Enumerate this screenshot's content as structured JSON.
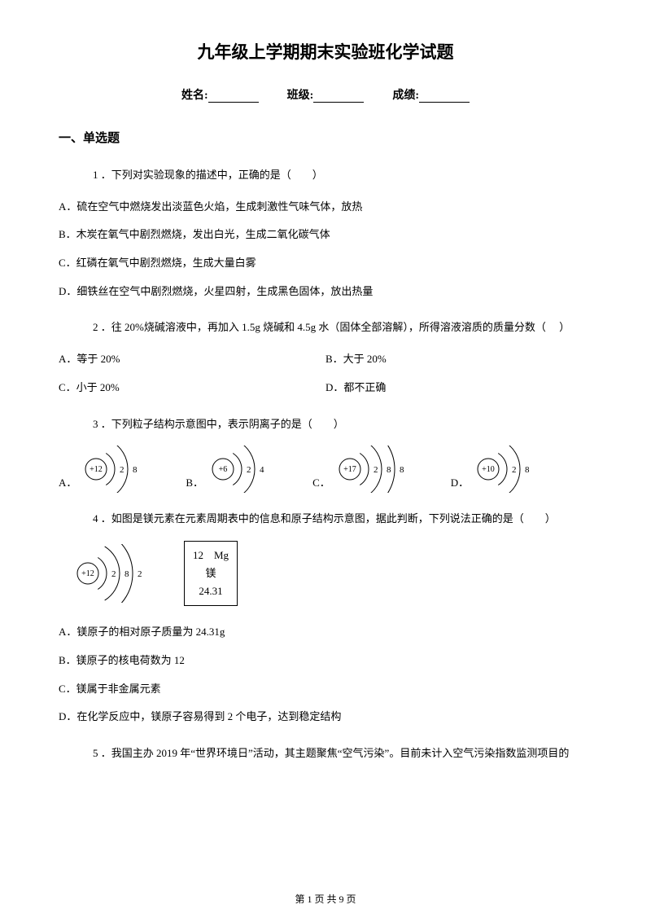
{
  "title": "九年级上学期期末实验班化学试题",
  "info": {
    "name_label": "姓名:",
    "class_label": "班级:",
    "score_label": "成绩:"
  },
  "section1_title": "一、单选题",
  "q1": {
    "stem": "1 ．下列对实验现象的描述中，正确的是（　　）",
    "a": "A．硫在空气中燃烧发出淡蓝色火焰，生成刺激性气味气体，放热",
    "b": "B．木炭在氧气中剧烈燃烧，发出白光，生成二氧化碳气体",
    "c": "C．红磷在氧气中剧烈燃烧，生成大量白雾",
    "d": "D．细铁丝在空气中剧烈燃烧，火星四射，生成黑色固体，放出热量"
  },
  "q2": {
    "stem": "2 ．往 20%烧碱溶液中，再加入 1.5g 烧碱和 4.5g 水（固体全部溶解），所得溶液溶质的质量分数（　  ）",
    "a": "A．等于 20%",
    "b": "B．大于 20%",
    "c": "C．小于 20%",
    "d": "D．都不正确"
  },
  "q3": {
    "stem": "3 ．下列粒子结构示意图中，表示阴离子的是（　　）",
    "opts": {
      "a": "A．",
      "b": "B．",
      "c": "C．",
      "d": "D．"
    },
    "atoms": {
      "a": {
        "nucleus": "+12",
        "shells": [
          "2",
          "8"
        ]
      },
      "b": {
        "nucleus": "+6",
        "shells": [
          "2",
          "4"
        ]
      },
      "c": {
        "nucleus": "+17",
        "shells": [
          "2",
          "8",
          "8"
        ]
      },
      "d": {
        "nucleus": "+10",
        "shells": [
          "2",
          "8"
        ]
      }
    }
  },
  "q4": {
    "stem": "4 ．如图是镁元素在元素周期表中的信息和原子结构示意图，据此判断，下列说法正确的是（　　）",
    "atom": {
      "nucleus": "+12",
      "shells": [
        "2",
        "8",
        "2"
      ]
    },
    "element": {
      "line1": "12　Mg",
      "line2": "镁",
      "line3": "24.31"
    },
    "a": "A．镁原子的相对原子质量为 24.31g",
    "b": "B．镁原子的核电荷数为 12",
    "c": "C．镁属于非金属元素",
    "d": "D．在化学反应中，镁原子容易得到 2 个电子，达到稳定结构"
  },
  "q5": {
    "stem": "5  ．我国主办 2019 年“世界环境日”活动，其主题聚焦“空气污染”。目前未计入空气污染指数监测项目的"
  },
  "footer": "第 1 页 共 9 页",
  "svg": {
    "stroke": "#000000",
    "text_fill": "#000000",
    "fontsize_nucleus": 10,
    "fontsize_shell": 11
  }
}
